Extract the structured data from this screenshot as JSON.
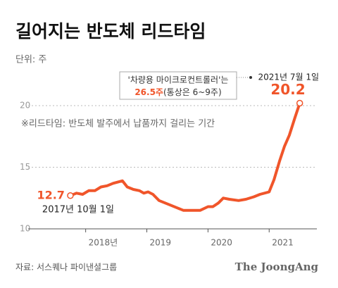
{
  "chart_data": {
    "type": "line",
    "title": "길어지는 반도체 리드타임",
    "unit": "단위: 주",
    "note": "※리드타임: 반도체 발주에서 납품까지 걸리는 기간",
    "source": "자료: 서스퀘나 파이낸셜그룹",
    "brand": "The JoongAng",
    "annotations": {
      "start_value": "12.7",
      "start_date": "2017년 10월 1일",
      "end_value": "20.2",
      "end_date": "2021년 7월 1일",
      "callout_line1": "'차량용 마이크로컨트롤러'는",
      "callout_highlight": "26.5주",
      "callout_rest": "(통상은 6~9주)"
    },
    "x": [
      2017.75,
      2017.85,
      2017.95,
      2018.05,
      2018.15,
      2018.25,
      2018.35,
      2018.45,
      2018.6,
      2018.68,
      2018.78,
      2018.88,
      2018.95,
      2019.02,
      2019.1,
      2019.2,
      2019.3,
      2019.4,
      2019.5,
      2019.6,
      2019.75,
      2019.87,
      2020.0,
      2020.08,
      2020.17,
      2020.25,
      2020.35,
      2020.5,
      2020.62,
      2020.75,
      2020.85,
      2021.0,
      2021.08,
      2021.17,
      2021.25,
      2021.33,
      2021.42,
      2021.5
    ],
    "series": [
      {
        "name": "리드타임",
        "color": "#f0552a",
        "values": [
          12.7,
          12.9,
          12.8,
          13.1,
          13.1,
          13.4,
          13.5,
          13.7,
          13.9,
          13.4,
          13.2,
          13.1,
          12.9,
          13.0,
          12.8,
          12.3,
          12.1,
          11.9,
          11.7,
          11.5,
          11.5,
          11.5,
          11.8,
          11.8,
          12.1,
          12.5,
          12.4,
          12.3,
          12.4,
          12.6,
          12.8,
          13.0,
          14.0,
          15.5,
          16.7,
          17.6,
          19.0,
          20.2
        ]
      }
    ],
    "xlim": [
      2017.06,
      2021.78
    ],
    "xticks": [
      {
        "value": 2018,
        "label": "2018년"
      },
      {
        "value": 2019,
        "label": "2019"
      },
      {
        "value": 2020,
        "label": "2020"
      },
      {
        "value": 2021,
        "label": "2021"
      }
    ],
    "ylim": [
      10,
      22
    ],
    "yticks": [
      10,
      15,
      20
    ],
    "grid": true
  }
}
